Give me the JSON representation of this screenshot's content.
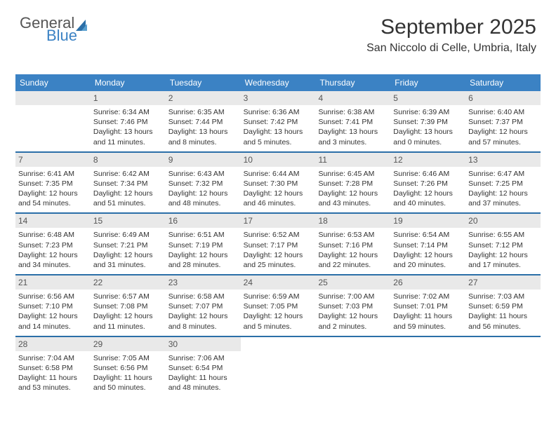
{
  "brand": {
    "word1": "General",
    "word2": "Blue"
  },
  "title": {
    "month": "September 2025",
    "location": "San Niccolo di Celle, Umbria, Italy"
  },
  "colors": {
    "header_bg": "#3b82c4",
    "band_bg": "#e9e9e9",
    "week_divider": "#2b6fa8",
    "text": "#333333",
    "title_fontsize": 30,
    "location_fontsize": 16,
    "header_fontsize": 12,
    "daynum_fontsize": 12,
    "detail_fontsize": 10.5
  },
  "weekdays": [
    "Sunday",
    "Monday",
    "Tuesday",
    "Wednesday",
    "Thursday",
    "Friday",
    "Saturday"
  ],
  "weeks": [
    [
      {
        "n": "",
        "sr": "",
        "ss": "",
        "dl": ""
      },
      {
        "n": "1",
        "sr": "Sunrise: 6:34 AM",
        "ss": "Sunset: 7:46 PM",
        "dl": "Daylight: 13 hours and 11 minutes."
      },
      {
        "n": "2",
        "sr": "Sunrise: 6:35 AM",
        "ss": "Sunset: 7:44 PM",
        "dl": "Daylight: 13 hours and 8 minutes."
      },
      {
        "n": "3",
        "sr": "Sunrise: 6:36 AM",
        "ss": "Sunset: 7:42 PM",
        "dl": "Daylight: 13 hours and 5 minutes."
      },
      {
        "n": "4",
        "sr": "Sunrise: 6:38 AM",
        "ss": "Sunset: 7:41 PM",
        "dl": "Daylight: 13 hours and 3 minutes."
      },
      {
        "n": "5",
        "sr": "Sunrise: 6:39 AM",
        "ss": "Sunset: 7:39 PM",
        "dl": "Daylight: 13 hours and 0 minutes."
      },
      {
        "n": "6",
        "sr": "Sunrise: 6:40 AM",
        "ss": "Sunset: 7:37 PM",
        "dl": "Daylight: 12 hours and 57 minutes."
      }
    ],
    [
      {
        "n": "7",
        "sr": "Sunrise: 6:41 AM",
        "ss": "Sunset: 7:35 PM",
        "dl": "Daylight: 12 hours and 54 minutes."
      },
      {
        "n": "8",
        "sr": "Sunrise: 6:42 AM",
        "ss": "Sunset: 7:34 PM",
        "dl": "Daylight: 12 hours and 51 minutes."
      },
      {
        "n": "9",
        "sr": "Sunrise: 6:43 AM",
        "ss": "Sunset: 7:32 PM",
        "dl": "Daylight: 12 hours and 48 minutes."
      },
      {
        "n": "10",
        "sr": "Sunrise: 6:44 AM",
        "ss": "Sunset: 7:30 PM",
        "dl": "Daylight: 12 hours and 46 minutes."
      },
      {
        "n": "11",
        "sr": "Sunrise: 6:45 AM",
        "ss": "Sunset: 7:28 PM",
        "dl": "Daylight: 12 hours and 43 minutes."
      },
      {
        "n": "12",
        "sr": "Sunrise: 6:46 AM",
        "ss": "Sunset: 7:26 PM",
        "dl": "Daylight: 12 hours and 40 minutes."
      },
      {
        "n": "13",
        "sr": "Sunrise: 6:47 AM",
        "ss": "Sunset: 7:25 PM",
        "dl": "Daylight: 12 hours and 37 minutes."
      }
    ],
    [
      {
        "n": "14",
        "sr": "Sunrise: 6:48 AM",
        "ss": "Sunset: 7:23 PM",
        "dl": "Daylight: 12 hours and 34 minutes."
      },
      {
        "n": "15",
        "sr": "Sunrise: 6:49 AM",
        "ss": "Sunset: 7:21 PM",
        "dl": "Daylight: 12 hours and 31 minutes."
      },
      {
        "n": "16",
        "sr": "Sunrise: 6:51 AM",
        "ss": "Sunset: 7:19 PM",
        "dl": "Daylight: 12 hours and 28 minutes."
      },
      {
        "n": "17",
        "sr": "Sunrise: 6:52 AM",
        "ss": "Sunset: 7:17 PM",
        "dl": "Daylight: 12 hours and 25 minutes."
      },
      {
        "n": "18",
        "sr": "Sunrise: 6:53 AM",
        "ss": "Sunset: 7:16 PM",
        "dl": "Daylight: 12 hours and 22 minutes."
      },
      {
        "n": "19",
        "sr": "Sunrise: 6:54 AM",
        "ss": "Sunset: 7:14 PM",
        "dl": "Daylight: 12 hours and 20 minutes."
      },
      {
        "n": "20",
        "sr": "Sunrise: 6:55 AM",
        "ss": "Sunset: 7:12 PM",
        "dl": "Daylight: 12 hours and 17 minutes."
      }
    ],
    [
      {
        "n": "21",
        "sr": "Sunrise: 6:56 AM",
        "ss": "Sunset: 7:10 PM",
        "dl": "Daylight: 12 hours and 14 minutes."
      },
      {
        "n": "22",
        "sr": "Sunrise: 6:57 AM",
        "ss": "Sunset: 7:08 PM",
        "dl": "Daylight: 12 hours and 11 minutes."
      },
      {
        "n": "23",
        "sr": "Sunrise: 6:58 AM",
        "ss": "Sunset: 7:07 PM",
        "dl": "Daylight: 12 hours and 8 minutes."
      },
      {
        "n": "24",
        "sr": "Sunrise: 6:59 AM",
        "ss": "Sunset: 7:05 PM",
        "dl": "Daylight: 12 hours and 5 minutes."
      },
      {
        "n": "25",
        "sr": "Sunrise: 7:00 AM",
        "ss": "Sunset: 7:03 PM",
        "dl": "Daylight: 12 hours and 2 minutes."
      },
      {
        "n": "26",
        "sr": "Sunrise: 7:02 AM",
        "ss": "Sunset: 7:01 PM",
        "dl": "Daylight: 11 hours and 59 minutes."
      },
      {
        "n": "27",
        "sr": "Sunrise: 7:03 AM",
        "ss": "Sunset: 6:59 PM",
        "dl": "Daylight: 11 hours and 56 minutes."
      }
    ],
    [
      {
        "n": "28",
        "sr": "Sunrise: 7:04 AM",
        "ss": "Sunset: 6:58 PM",
        "dl": "Daylight: 11 hours and 53 minutes."
      },
      {
        "n": "29",
        "sr": "Sunrise: 7:05 AM",
        "ss": "Sunset: 6:56 PM",
        "dl": "Daylight: 11 hours and 50 minutes."
      },
      {
        "n": "30",
        "sr": "Sunrise: 7:06 AM",
        "ss": "Sunset: 6:54 PM",
        "dl": "Daylight: 11 hours and 48 minutes."
      },
      {
        "n": "",
        "sr": "",
        "ss": "",
        "dl": ""
      },
      {
        "n": "",
        "sr": "",
        "ss": "",
        "dl": ""
      },
      {
        "n": "",
        "sr": "",
        "ss": "",
        "dl": ""
      },
      {
        "n": "",
        "sr": "",
        "ss": "",
        "dl": ""
      }
    ]
  ]
}
